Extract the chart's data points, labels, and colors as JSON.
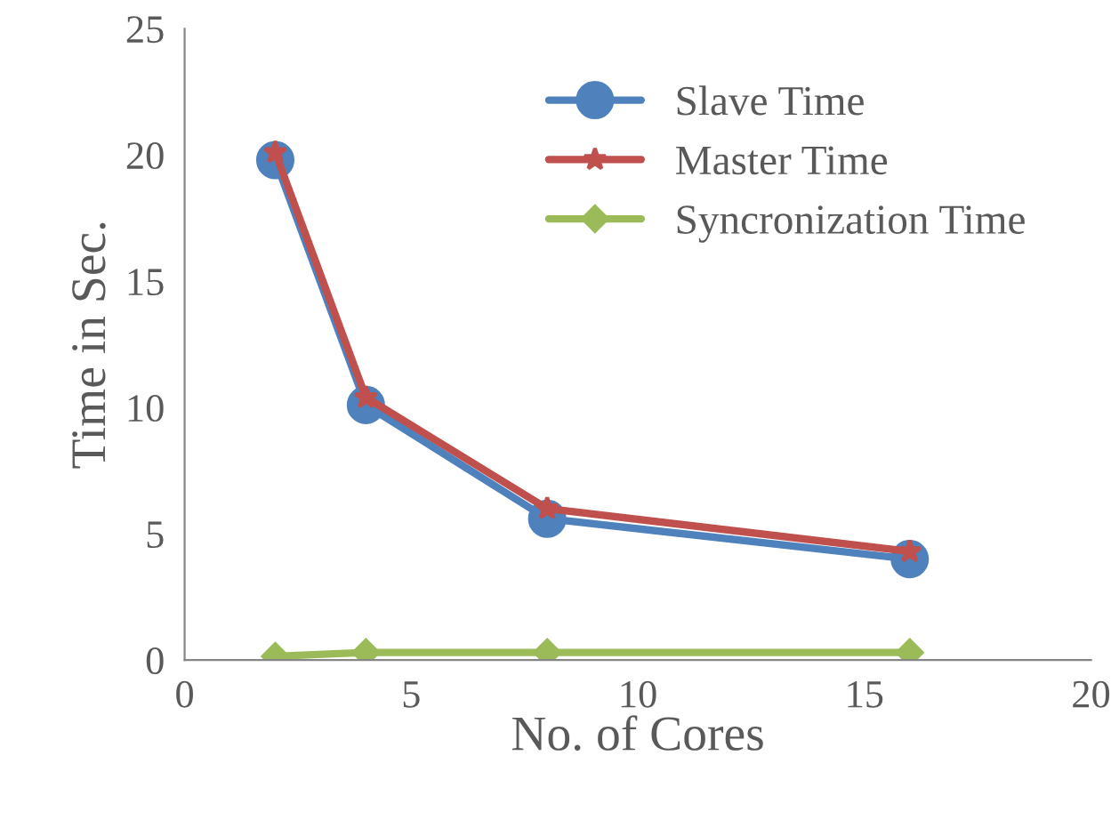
{
  "chart_data": {
    "type": "line",
    "xlabel": "No. of Cores",
    "ylabel": "Time in Sec.",
    "x": [
      2,
      4,
      8,
      16
    ],
    "series": [
      {
        "name": "Slave Time",
        "color": "#4f81bd",
        "values": [
          19.8,
          10.1,
          5.6,
          4.0
        ],
        "marker": "circle"
      },
      {
        "name": "Master Time",
        "color": "#c0504d",
        "values": [
          20.1,
          10.4,
          6.0,
          4.3
        ],
        "marker": "star"
      },
      {
        "name": "Syncronization Time",
        "color": "#9bbb59",
        "values": [
          0.15,
          0.3,
          0.3,
          0.3
        ],
        "marker": "diamond"
      }
    ],
    "xlim": [
      0,
      20
    ],
    "xticks": [
      0,
      5,
      10,
      15,
      20
    ],
    "ylim": [
      0,
      25
    ],
    "yticks": [
      0,
      5,
      10,
      15,
      20,
      25
    ],
    "grid": false,
    "legend": "top right",
    "line_style": "solid"
  }
}
